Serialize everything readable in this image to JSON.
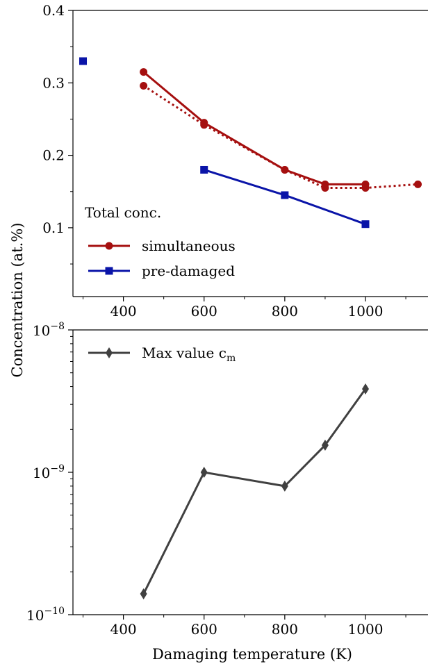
{
  "figure": {
    "ylabel": "Concentration (at.%)",
    "xlabel": "Damaging temperature (K)"
  },
  "chart_data": [
    {
      "type": "line",
      "legend_title": "Total conc.",
      "legend_position": "lower-left",
      "xlim": [
        275,
        1155
      ],
      "ylim": [
        0.005,
        0.4
      ],
      "xticks": [
        400,
        600,
        800,
        1000
      ],
      "xtick_labels": [
        "400",
        "600",
        "800",
        "1000"
      ],
      "yticks": [
        0.1,
        0.2,
        0.3,
        0.4
      ],
      "ytick_labels": [
        "0.1",
        "0.2",
        "0.3",
        "0.4"
      ],
      "colors": {
        "simultaneous": "#a50f0f",
        "pre_damaged": "#0a14a8"
      },
      "series": [
        {
          "name": "simultaneous",
          "marker": "circle",
          "line": "solid",
          "x": [
            450,
            600,
            800,
            900,
            1000
          ],
          "y": [
            0.315,
            0.245,
            0.18,
            0.16,
            0.16
          ]
        },
        {
          "name": "",
          "marker": "circle",
          "line": "dotted",
          "x": [
            450,
            600,
            800,
            900,
            1000,
            1130
          ],
          "y": [
            0.296,
            0.242,
            0.18,
            0.155,
            0.155,
            0.16
          ]
        },
        {
          "name": "pre-damaged",
          "marker": "square",
          "line": "solid",
          "x": [
            600,
            800,
            1000
          ],
          "y": [
            0.18,
            0.145,
            0.105
          ]
        },
        {
          "name": "",
          "marker": "square",
          "line": "none",
          "x": [
            300
          ],
          "y": [
            0.33
          ]
        }
      ]
    },
    {
      "type": "line",
      "yscale": "log",
      "legend_position": "upper-left",
      "xlim": [
        275,
        1155
      ],
      "ylim": [
        1e-10,
        1e-08
      ],
      "xticks": [
        400,
        600,
        800,
        1000
      ],
      "xtick_labels": [
        "400",
        "600",
        "800",
        "1000"
      ],
      "yticks": [
        1e-10,
        1e-09,
        1e-08
      ],
      "ytick_base": "10",
      "ytick_exponents": [
        "−10",
        "−9",
        "−8"
      ],
      "colors": {
        "max": "#404040"
      },
      "series": [
        {
          "name": "Max value c",
          "name_sub": "m",
          "marker": "diamond",
          "line": "solid",
          "x": [
            450,
            600,
            800,
            900,
            1000
          ],
          "y": [
            1.4e-10,
            1e-09,
            8e-10,
            1.55e-09,
            3.85e-09
          ]
        }
      ]
    }
  ]
}
